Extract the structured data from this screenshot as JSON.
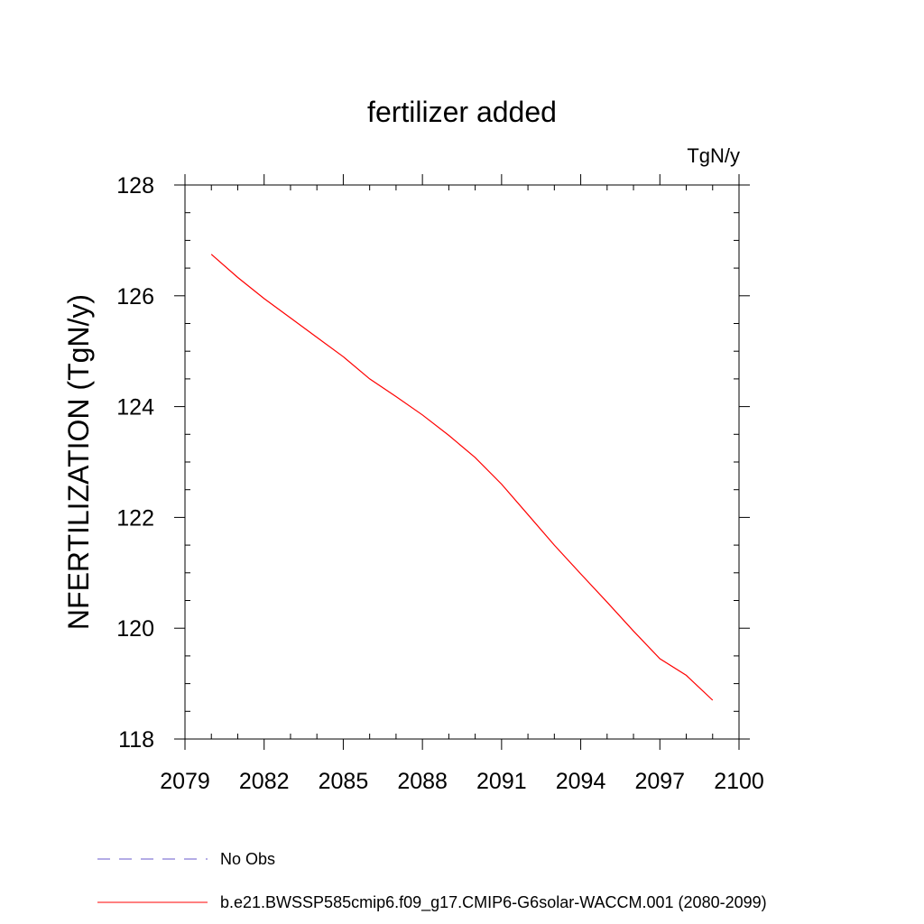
{
  "chart_data": {
    "type": "line",
    "title": "fertilizer added",
    "units": "TgN/y",
    "xlabel": "",
    "ylabel": "NFERTILIZATION  (TgN/y)",
    "xlim": [
      2079,
      2100
    ],
    "ylim": [
      118,
      128
    ],
    "x_ticks": [
      "2079",
      "2082",
      "2085",
      "2088",
      "2091",
      "2094",
      "2097",
      "2100"
    ],
    "y_ticks": [
      "118",
      "120",
      "122",
      "124",
      "126",
      "128"
    ],
    "grid": false,
    "legend_position": "bottom",
    "series": [
      {
        "name": "No Obs",
        "color": "#6a5acd",
        "dash": "dashed",
        "x": [],
        "y": []
      },
      {
        "name": "b.e21.BWSSP585cmip6.f09_g17.CMIP6-G6solar-WACCM.001 (2080-2099)",
        "color": "#ff0000",
        "dash": "solid",
        "x": [
          2080,
          2081,
          2082,
          2083,
          2084,
          2085,
          2086,
          2087,
          2088,
          2089,
          2090,
          2091,
          2092,
          2093,
          2094,
          2095,
          2096,
          2097,
          2098,
          2099
        ],
        "y": [
          126.75,
          126.33,
          125.95,
          125.6,
          125.25,
          124.9,
          124.5,
          124.18,
          123.85,
          123.48,
          123.08,
          122.6,
          122.05,
          121.5,
          120.98,
          120.47,
          119.95,
          119.45,
          119.15,
          118.7
        ]
      }
    ]
  }
}
